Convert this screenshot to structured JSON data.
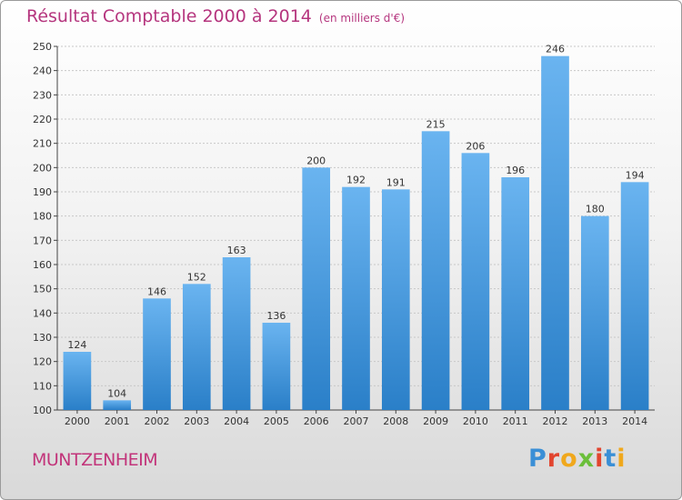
{
  "header": {
    "title": "Résultat Comptable 2000 à 2014",
    "subtitle": "(en milliers d'€)"
  },
  "footer": {
    "city": "MUNTZENHEIM",
    "brand": "Proxiti",
    "brand_colors": [
      "#3a8fd6",
      "#e2452f",
      "#f0a81c",
      "#6bbf3a",
      "#e2452f",
      "#3a8fd6",
      "#f0a81c"
    ]
  },
  "colors": {
    "bar_top": "#6ab4f0",
    "bar_bottom": "#2a7fc8",
    "title": "#b5357e"
  },
  "chart_data": {
    "type": "bar",
    "title": "Résultat Comptable 2000 à 2014",
    "xlabel": "",
    "ylabel": "",
    "categories": [
      "2000",
      "2001",
      "2002",
      "2003",
      "2004",
      "2005",
      "2006",
      "2007",
      "2008",
      "2009",
      "2010",
      "2011",
      "2012",
      "2013",
      "2014"
    ],
    "values": [
      124,
      104,
      146,
      152,
      163,
      136,
      200,
      192,
      191,
      215,
      206,
      196,
      246,
      180,
      194
    ],
    "ylim": [
      100,
      250
    ],
    "yticks": [
      100,
      110,
      120,
      130,
      140,
      150,
      160,
      170,
      180,
      190,
      200,
      210,
      220,
      230,
      240,
      250
    ],
    "grid": true,
    "legend": "none"
  }
}
